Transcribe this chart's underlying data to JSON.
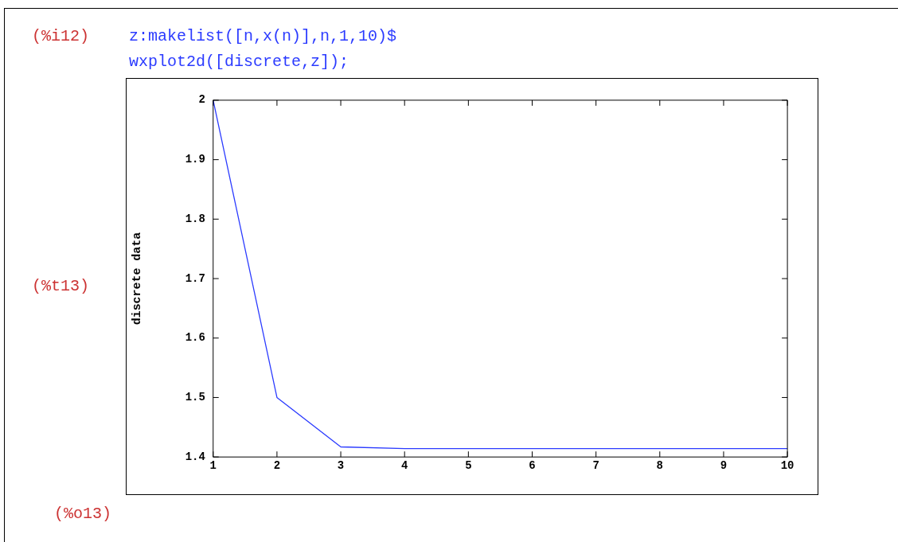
{
  "chart_data": {
    "type": "line",
    "ylabel": "discrete data",
    "x": [
      1,
      2,
      3,
      4,
      5,
      6,
      7,
      8,
      9,
      10
    ],
    "series": [
      {
        "color": "#2b3bff",
        "values": [
          2,
          1.5,
          1.417,
          1.414,
          1.414,
          1.414,
          1.414,
          1.414,
          1.414,
          1.414
        ]
      }
    ],
    "xlim": [
      1,
      10
    ],
    "xticks": [
      1,
      2,
      3,
      4,
      5,
      6,
      7,
      8,
      9,
      10
    ],
    "ylim": [
      1.4,
      2
    ],
    "yticks": [
      {
        "value": 1.4,
        "label": "1.4"
      },
      {
        "value": 1.5,
        "label": "1.5"
      },
      {
        "value": 1.6,
        "label": "1.6"
      },
      {
        "value": 1.7,
        "label": "1.7"
      },
      {
        "value": 1.8,
        "label": "1.8"
      },
      {
        "value": 1.9,
        "label": "1.9"
      },
      {
        "value": 2,
        "label": "2"
      }
    ],
    "grid": false,
    "legend": false,
    "marker": "none",
    "line_style": "solid",
    "annotations": [
      "(%i12)",
      "z:makelist([n,x(n)],n,1,10)$",
      "wxplot2d([discrete,z]);",
      "(%t13)",
      "(%o13)"
    ]
  }
}
